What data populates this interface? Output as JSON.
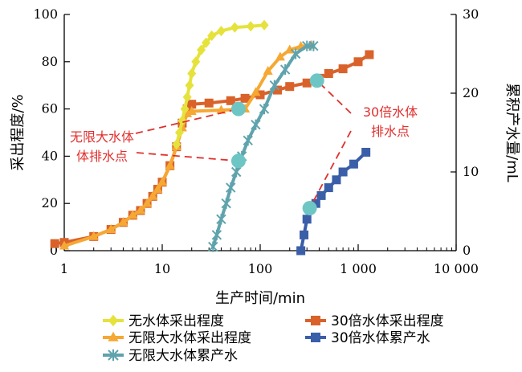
{
  "chart_data": {
    "type": "scatter",
    "x_scale": "log",
    "xlabel": "生产时间/min",
    "ylabel_left": "采出程度/%",
    "ylabel_right": "累积产水量/mL",
    "xlim": [
      1,
      10000
    ],
    "ylim_left": [
      0,
      100
    ],
    "ylim_right": [
      0,
      30
    ],
    "x_ticks": [
      {
        "value": 1,
        "label": "1"
      },
      {
        "value": 10,
        "label": "10"
      },
      {
        "value": 100,
        "label": "100"
      },
      {
        "value": 1000,
        "label": "1 000"
      },
      {
        "value": 10000,
        "label": "10 000"
      }
    ],
    "y_left_ticks": [
      {
        "value": 0,
        "label": "0"
      },
      {
        "value": 20,
        "label": "20"
      },
      {
        "value": 40,
        "label": "40"
      },
      {
        "value": 60,
        "label": "60"
      },
      {
        "value": 80,
        "label": "80"
      },
      {
        "value": 100,
        "label": "100"
      }
    ],
    "y_right_ticks": [
      {
        "value": 0,
        "label": "0"
      },
      {
        "value": 10,
        "label": "10"
      },
      {
        "value": 20,
        "label": "20"
      },
      {
        "value": 30,
        "label": "30"
      }
    ],
    "series": [
      {
        "name": "30倍水体采出程度",
        "axis": "left",
        "color": "#d9622b",
        "marker": "square",
        "points": [
          [
            0.8,
            3
          ],
          [
            1,
            3.5
          ],
          [
            2,
            6
          ],
          [
            3,
            9
          ],
          [
            4,
            12
          ],
          [
            5,
            15
          ],
          [
            6,
            17
          ],
          [
            7,
            20
          ],
          [
            8,
            23
          ],
          [
            9,
            26
          ],
          [
            10,
            29
          ],
          [
            12,
            36
          ],
          [
            14,
            44
          ],
          [
            16,
            54
          ],
          [
            18,
            60
          ],
          [
            20,
            62
          ],
          [
            30,
            62.5
          ],
          [
            50,
            63.5
          ],
          [
            70,
            64.5
          ],
          [
            100,
            66
          ],
          [
            150,
            68
          ],
          [
            200,
            69.5
          ],
          [
            300,
            71
          ],
          [
            400,
            73
          ],
          [
            500,
            75
          ],
          [
            700,
            77
          ],
          [
            1000,
            80
          ],
          [
            1300,
            83
          ]
        ]
      },
      {
        "name": "无限大水体采出程度",
        "axis": "left",
        "color": "#f5a833",
        "marker": "triangle",
        "points": [
          [
            1,
            2
          ],
          [
            2,
            6
          ],
          [
            3,
            9
          ],
          [
            4,
            12
          ],
          [
            5,
            15
          ],
          [
            6,
            17
          ],
          [
            7,
            20
          ],
          [
            8,
            23
          ],
          [
            9,
            26
          ],
          [
            10,
            29
          ],
          [
            12,
            36
          ],
          [
            14,
            44
          ],
          [
            16,
            52
          ],
          [
            18,
            58
          ],
          [
            20,
            59
          ],
          [
            40,
            59.5
          ],
          [
            70,
            60
          ],
          [
            90,
            67
          ],
          [
            120,
            76
          ],
          [
            160,
            82
          ],
          [
            200,
            85
          ],
          [
            260,
            86.5
          ],
          [
            330,
            87
          ]
        ]
      },
      {
        "name": "无水体采出程度",
        "axis": "left",
        "color": "#e6e23c",
        "marker": "diamond",
        "points": [
          [
            14,
            45
          ],
          [
            15,
            50
          ],
          [
            16,
            55
          ],
          [
            17,
            60
          ],
          [
            18,
            65
          ],
          [
            19,
            70
          ],
          [
            20,
            75
          ],
          [
            22,
            80
          ],
          [
            25,
            85
          ],
          [
            28,
            88
          ],
          [
            32,
            91
          ],
          [
            40,
            93
          ],
          [
            55,
            94.5
          ],
          [
            80,
            95
          ],
          [
            110,
            95.5
          ]
        ]
      },
      {
        "name": "无限大水体累产水",
        "axis": "right",
        "color": "#5fa3ad",
        "marker": "x",
        "points": [
          [
            33,
            0.5
          ],
          [
            36,
            2
          ],
          [
            40,
            4
          ],
          [
            45,
            6
          ],
          [
            50,
            8
          ],
          [
            57,
            10
          ],
          [
            65,
            12
          ],
          [
            75,
            14
          ],
          [
            90,
            16
          ],
          [
            110,
            18
          ],
          [
            140,
            21
          ],
          [
            180,
            23
          ],
          [
            230,
            25
          ],
          [
            300,
            26
          ],
          [
            350,
            26
          ]
        ]
      },
      {
        "name": "30倍水体累产水",
        "axis": "right",
        "color": "#3a5ea8",
        "marker": "square",
        "points": [
          [
            260,
            0
          ],
          [
            280,
            2
          ],
          [
            300,
            4
          ],
          [
            330,
            5.5
          ],
          [
            370,
            6
          ],
          [
            420,
            7
          ],
          [
            500,
            8
          ],
          [
            600,
            9
          ],
          [
            700,
            10
          ],
          [
            900,
            11
          ],
          [
            1200,
            12.5
          ]
        ]
      }
    ],
    "highlight_points": [
      {
        "axis": "left",
        "x": 60,
        "y": 60
      },
      {
        "axis": "left",
        "x": 60,
        "y": 38
      },
      {
        "axis": "left",
        "x": 380,
        "y": 72
      },
      {
        "axis": "left",
        "x": 320,
        "y": 18
      }
    ],
    "annotations": [
      {
        "lines": [
          "无限大水体",
          "体排水点"
        ],
        "target_indices": [
          0,
          1
        ]
      },
      {
        "lines": [
          "30倍水体",
          "排水点"
        ],
        "target_indices": [
          2,
          3
        ]
      }
    ],
    "legend_order": [
      "无水体采出程度",
      "30倍水体采出程度",
      "无限大水体采出程度",
      "30倍水体累产水",
      "无限大水体累产水"
    ],
    "legend_placement": "bottom"
  }
}
